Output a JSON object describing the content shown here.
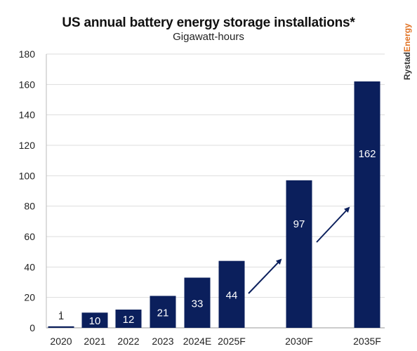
{
  "chart_data": {
    "type": "bar",
    "title": "US annual battery energy storage installations*",
    "subtitle": "Gigawatt-hours",
    "categories": [
      "2020",
      "2021",
      "2022",
      "2023",
      "2024E",
      "2025F",
      "2030F",
      "2035F"
    ],
    "values": [
      1,
      10,
      12,
      21,
      33,
      44,
      97,
      162
    ],
    "data_labels": [
      "1",
      "10",
      "12",
      "21",
      "33",
      "44",
      "97",
      "162"
    ],
    "ylim": [
      0,
      180
    ],
    "yticks": [
      0,
      20,
      40,
      60,
      80,
      100,
      120,
      140,
      160,
      180
    ],
    "grid": true,
    "bar_color": "#0b1f5c",
    "annotations": [
      "arrow 2025F to 2030F",
      "arrow 2030F to 2035F"
    ]
  },
  "brand": {
    "name_part1": "Rystad",
    "name_part2": "Energy",
    "color1": "#333333",
    "color2": "#e07020"
  }
}
